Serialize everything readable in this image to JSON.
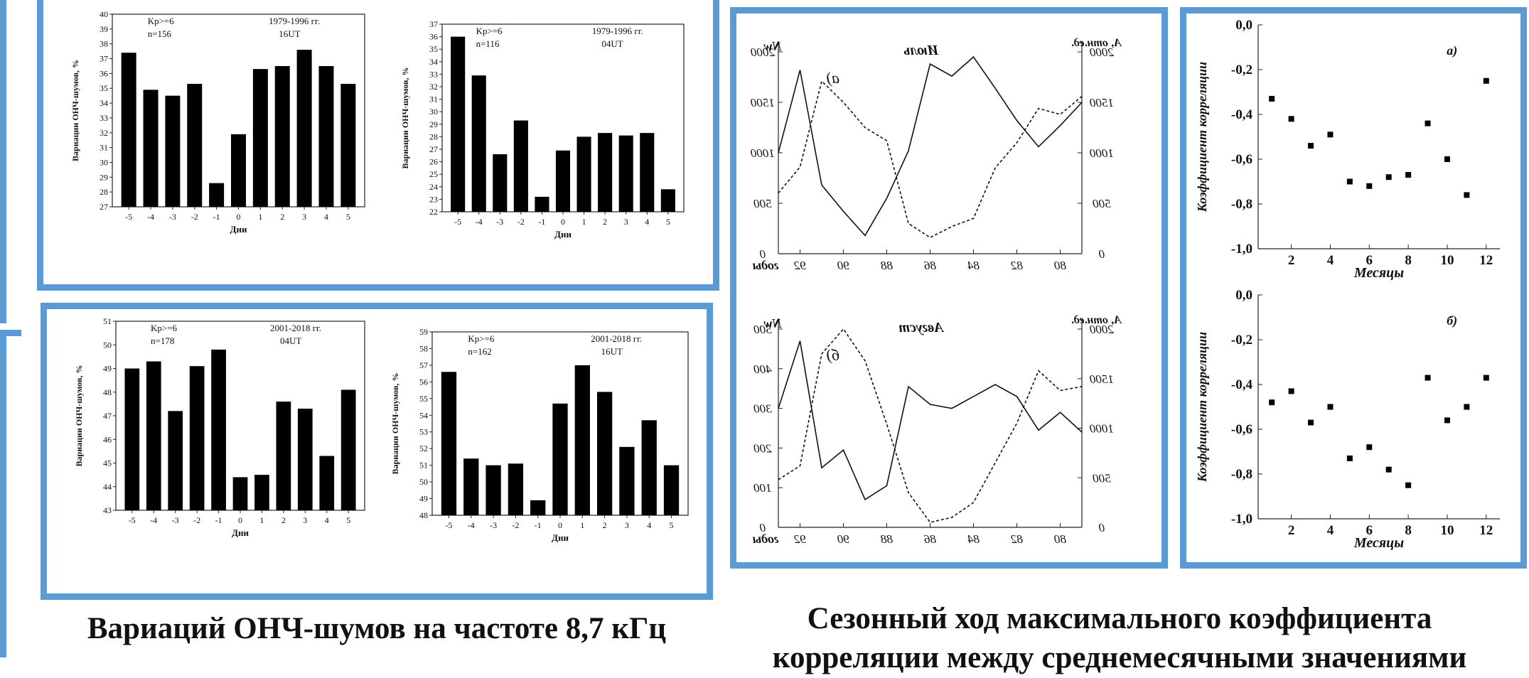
{
  "colors": {
    "frame": "#5b9bd5",
    "bars": "#000000",
    "ink": "#111111"
  },
  "charts_left": [
    {
      "id": "bar-1",
      "type": "bar",
      "categories": [
        "-5",
        "-4",
        "-3",
        "-2",
        "-1",
        "0",
        "1",
        "2",
        "3",
        "4",
        "5"
      ],
      "values": [
        37.4,
        34.9,
        34.5,
        35.3,
        28.6,
        31.9,
        36.3,
        36.5,
        37.6,
        36.5,
        35.3
      ],
      "ylim": [
        27,
        40
      ],
      "yticks": [
        27,
        28,
        29,
        30,
        31,
        32,
        33,
        34,
        35,
        36,
        37,
        38,
        39,
        40
      ],
      "ylabel": "Вариации ОНЧ-шумов, %",
      "xlabel": "Дни",
      "ann_kp": "Kp>=6",
      "ann_n": "n=156",
      "ann_years": "1979-1996 гг.",
      "ann_ut": "16UT"
    },
    {
      "id": "bar-2",
      "type": "bar",
      "categories": [
        "-5",
        "-4",
        "-3",
        "-2",
        "-1",
        "0",
        "1",
        "2",
        "3",
        "4",
        "5"
      ],
      "values": [
        36.0,
        32.9,
        26.6,
        29.3,
        23.2,
        26.9,
        28.0,
        28.3,
        28.1,
        28.3,
        23.8
      ],
      "ylim": [
        22,
        37
      ],
      "yticks": [
        22,
        23,
        24,
        25,
        26,
        27,
        28,
        29,
        30,
        31,
        32,
        33,
        34,
        35,
        36,
        37
      ],
      "ylabel": "Вариации ОНЧ-шумов, %",
      "xlabel": "Дни",
      "ann_kp": "Kp>=6",
      "ann_n": "n=116",
      "ann_years": "1979-1996 гг.",
      "ann_ut": "04UT"
    },
    {
      "id": "bar-3",
      "type": "bar",
      "categories": [
        "-5",
        "-4",
        "-3",
        "-2",
        "-1",
        "0",
        "1",
        "2",
        "3",
        "4",
        "5"
      ],
      "values": [
        49.0,
        49.3,
        47.2,
        49.1,
        49.8,
        44.4,
        44.5,
        47.6,
        47.3,
        45.3,
        48.1
      ],
      "ylim": [
        43,
        51
      ],
      "yticks": [
        43,
        44,
        45,
        46,
        47,
        48,
        49,
        50,
        51
      ],
      "ylabel": "Вариации ОНЧ-шумов, %",
      "xlabel": "Дни",
      "ann_kp": "Kp>=6",
      "ann_n": "n=178",
      "ann_years": "2001-2018 гг.",
      "ann_ut": "04UT"
    },
    {
      "id": "bar-4",
      "type": "bar",
      "categories": [
        "-5",
        "-4",
        "-3",
        "-2",
        "-1",
        "0",
        "1",
        "2",
        "3",
        "4",
        "5"
      ],
      "values": [
        56.6,
        51.4,
        51.0,
        51.1,
        48.9,
        54.7,
        57.0,
        55.4,
        52.1,
        53.7,
        51.0
      ],
      "ylim": [
        48,
        59
      ],
      "yticks": [
        48,
        49,
        50,
        51,
        52,
        53,
        54,
        55,
        56,
        57,
        58,
        59
      ],
      "ylabel": "Вариации ОНЧ-шумов, %",
      "xlabel": "Дни",
      "ann_kp": "Kp>=6",
      "ann_n": "n=162",
      "ann_years": "2001-2018 гг.",
      "ann_ut": "16UT"
    }
  ],
  "charts_mid": [
    {
      "id": "line-1",
      "type": "line",
      "x": [
        93,
        92,
        91,
        90,
        89,
        88,
        87,
        86,
        85,
        84,
        83,
        82,
        81,
        80,
        79
      ],
      "xticks": [
        "92",
        "90",
        "88",
        "86",
        "84",
        "82",
        "80"
      ],
      "xtick_values": [
        92,
        90,
        88,
        86,
        84,
        82,
        80
      ],
      "xlabel": "годы",
      "left_ticks": [
        "0",
        "500",
        "1000",
        "1500",
        "2000"
      ],
      "left_tick_values": [
        0,
        500,
        1000,
        1500,
        2000
      ],
      "right_ticks": [
        "0",
        "500",
        "1000",
        "1500",
        "2000"
      ],
      "right_tick_values": [
        0,
        500,
        1000,
        1500,
        2000
      ],
      "left_label": "Nw",
      "right_label": "A, отн.ед.",
      "month": "Июль",
      "panel": "а)",
      "ylim_left": [
        0,
        2000
      ],
      "ylim_right": [
        0,
        2000
      ],
      "series": [
        {
          "style": "solid",
          "axis": "left",
          "values": [
            1000,
            1820,
            680,
            420,
            180,
            550,
            1020,
            1880,
            1760,
            1950,
            1640,
            1320,
            1060,
            1270,
            1500
          ]
        },
        {
          "style": "dashed",
          "axis": "right",
          "values": [
            600,
            860,
            1710,
            1500,
            1250,
            1120,
            300,
            160,
            270,
            350,
            850,
            1100,
            1440,
            1380,
            1560
          ]
        }
      ]
    },
    {
      "id": "line-2",
      "type": "line",
      "x": [
        93,
        92,
        91,
        90,
        89,
        88,
        87,
        86,
        85,
        84,
        83,
        82,
        81,
        80,
        79
      ],
      "xticks": [
        "92",
        "90",
        "88",
        "86",
        "84",
        "82",
        "80"
      ],
      "xtick_values": [
        92,
        90,
        88,
        86,
        84,
        82,
        80
      ],
      "xlabel": "годы",
      "left_ticks": [
        "0",
        "100",
        "200",
        "300",
        "400",
        "500"
      ],
      "left_tick_values": [
        0,
        100,
        200,
        300,
        400,
        500
      ],
      "right_ticks": [
        "0",
        "500",
        "1000",
        "1500",
        "2000"
      ],
      "right_tick_values": [
        0,
        500,
        1000,
        1500,
        2000
      ],
      "left_label": "Nw",
      "right_label": "A, отн.ед.",
      "month": "Август",
      "panel": "б)",
      "ylim_left": [
        0,
        500
      ],
      "ylim_right": [
        0,
        2000
      ],
      "series": [
        {
          "style": "solid",
          "axis": "left",
          "values": [
            300,
            470,
            150,
            195,
            70,
            105,
            355,
            310,
            300,
            330,
            360,
            330,
            245,
            290,
            240
          ]
        },
        {
          "style": "dashed",
          "axis": "right",
          "values": [
            480,
            620,
            1750,
            2000,
            1680,
            1040,
            350,
            50,
            100,
            250,
            650,
            1050,
            1580,
            1380,
            1420
          ]
        }
      ]
    }
  ],
  "charts_right": [
    {
      "id": "scatter-1",
      "type": "scatter",
      "x": [
        1,
        2,
        3,
        4,
        5,
        6,
        7,
        8,
        9,
        10,
        11,
        12
      ],
      "values": [
        -0.33,
        -0.42,
        -0.54,
        -0.49,
        -0.7,
        -0.72,
        -0.68,
        -0.67,
        -0.44,
        -0.6,
        -0.76,
        -0.25
      ],
      "xticks": [
        "2",
        "4",
        "6",
        "8",
        "10",
        "12"
      ],
      "xtick_values": [
        2,
        4,
        6,
        8,
        10,
        12
      ],
      "yticks": [
        "0,0",
        "-0,2",
        "-0,4",
        "-0,6",
        "-0,8",
        "-1,0"
      ],
      "ytick_values": [
        0,
        -0.2,
        -0.4,
        -0.6,
        -0.8,
        -1.0
      ],
      "xlim": [
        0.3,
        12.7
      ],
      "ylim": [
        -1.0,
        0.0
      ],
      "xlabel": "Месяцы",
      "ylabel": "Коэффициент корреляции",
      "panel": "а)"
    },
    {
      "id": "scatter-2",
      "type": "scatter",
      "x": [
        1,
        2,
        3,
        4,
        5,
        6,
        7,
        8,
        9,
        10,
        11,
        12
      ],
      "values": [
        -0.48,
        -0.43,
        -0.57,
        -0.5,
        -0.73,
        -0.68,
        -0.78,
        -0.85,
        -0.37,
        -0.56,
        -0.5,
        -0.37
      ],
      "xticks": [
        "2",
        "4",
        "6",
        "8",
        "10",
        "12"
      ],
      "xtick_values": [
        2,
        4,
        6,
        8,
        10,
        12
      ],
      "yticks": [
        "0,0",
        "-0,2",
        "-0,4",
        "-0,6",
        "-0,8",
        "-1,0"
      ],
      "ytick_values": [
        0,
        -0.2,
        -0.4,
        -0.6,
        -0.8,
        -1.0
      ],
      "xlim": [
        0.3,
        12.7
      ],
      "ylim": [
        -1.0,
        0.0
      ],
      "xlabel": "Месяцы",
      "ylabel": "Коэффициент корреляции",
      "panel": "б)"
    }
  ],
  "caption_left": "Вариаций ОНЧ-шумов на частоте 8,7 кГц",
  "caption_right_1": "Сезонный ход максимального коэффициента",
  "caption_right_2": "корреляции между среднемесячными значениями"
}
